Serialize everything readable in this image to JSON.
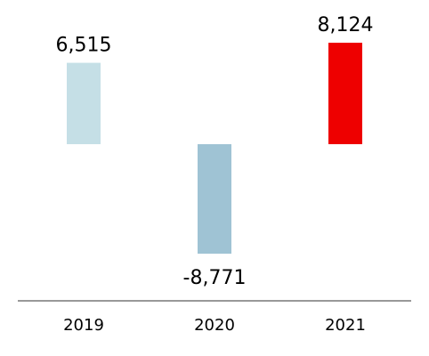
{
  "chart_data": {
    "type": "bar",
    "categories": [
      "2019",
      "2020",
      "2021"
    ],
    "values": [
      6515,
      -8771,
      8124
    ],
    "value_labels": [
      "6,515",
      "-8,771",
      "8,124"
    ],
    "bar_colors": [
      "#c5dfe6",
      "#9fc3d4",
      "#ee0000"
    ],
    "title": "",
    "xlabel": "",
    "ylabel": "",
    "ylim": [
      -12000,
      8124
    ],
    "grid": false,
    "legend": "none"
  }
}
